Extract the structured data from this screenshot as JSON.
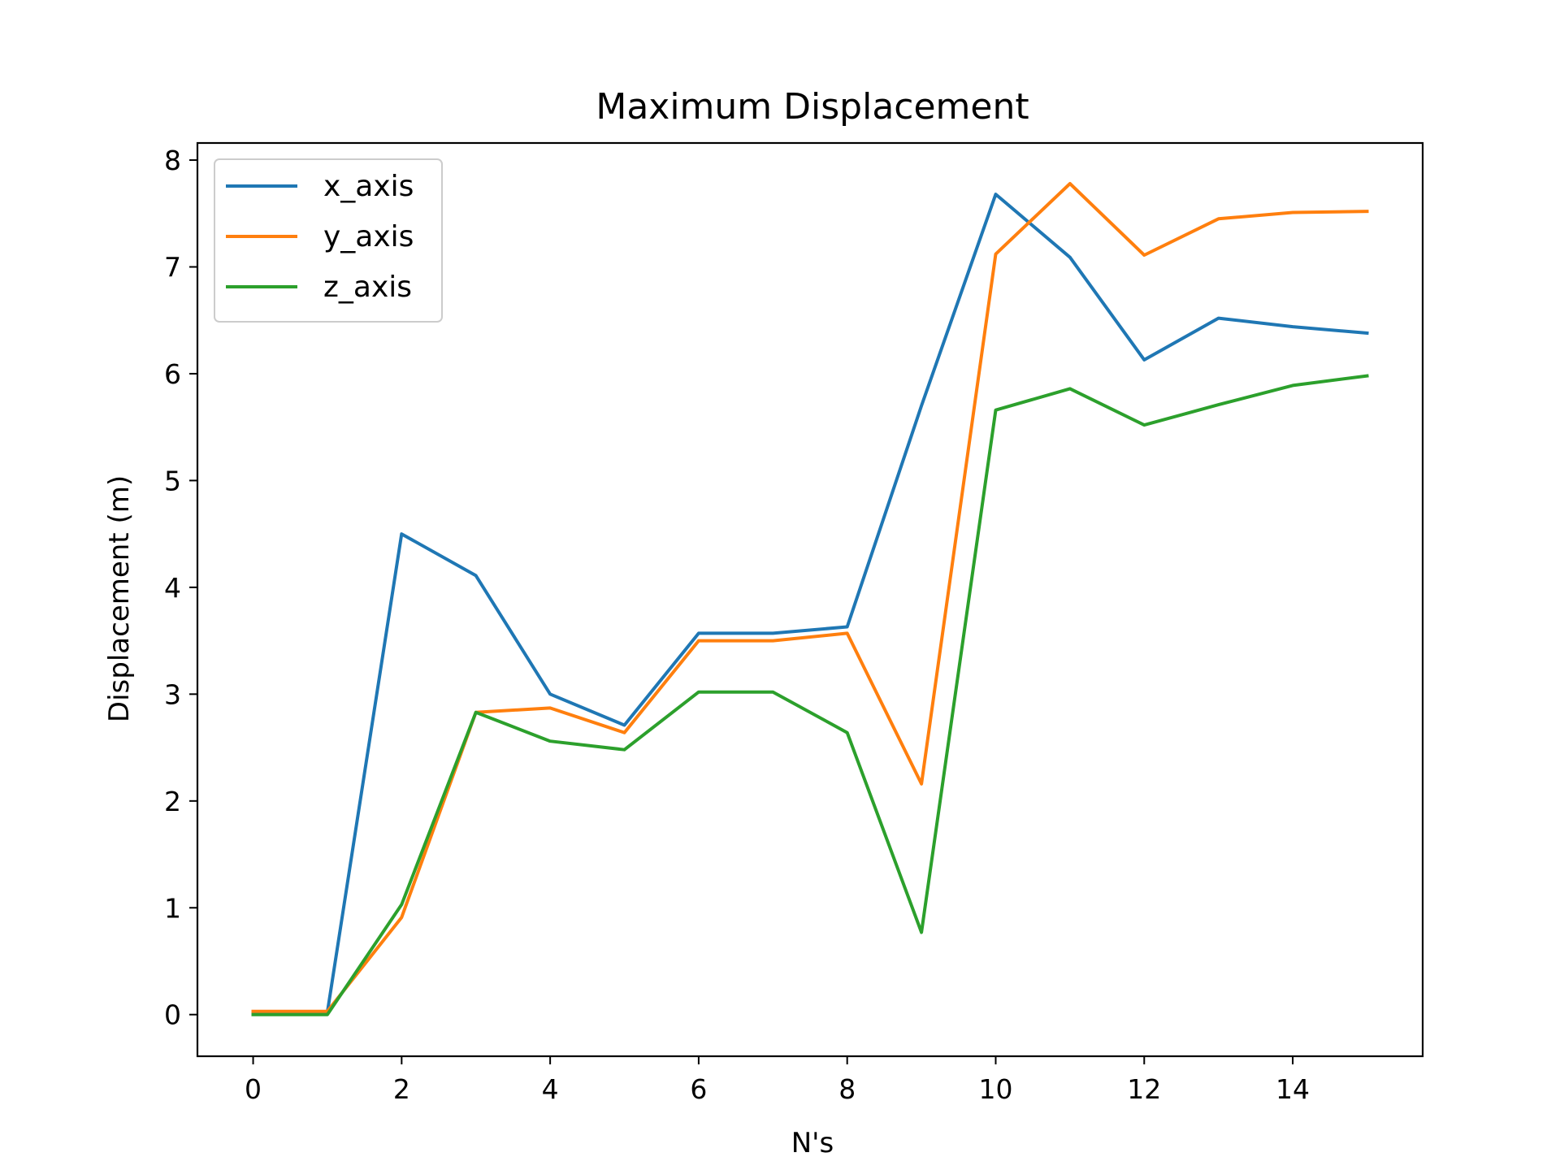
{
  "chart_data": {
    "type": "line",
    "title": "Maximum Displacement",
    "xlabel": "N's",
    "ylabel": "Displacement (m)",
    "xlim": [
      -0.75,
      15.75
    ],
    "ylim": [
      -0.39,
      8.16
    ],
    "xticks": [
      0,
      2,
      4,
      6,
      8,
      10,
      12,
      14
    ],
    "yticks": [
      0,
      1,
      2,
      3,
      4,
      5,
      6,
      7,
      8
    ],
    "grid": false,
    "legend_position": "top-left",
    "x": [
      0,
      1,
      2,
      3,
      4,
      5,
      6,
      7,
      8,
      9,
      10,
      11,
      12,
      13,
      14,
      15
    ],
    "series": [
      {
        "name": "x_axis",
        "color": "#1f77b4",
        "values": [
          0.02,
          0.02,
          4.5,
          4.11,
          3.0,
          2.71,
          3.57,
          3.57,
          3.63,
          5.7,
          7.68,
          7.09,
          6.13,
          6.52,
          6.44,
          6.38
        ]
      },
      {
        "name": "y_axis",
        "color": "#ff7f0e",
        "values": [
          0.03,
          0.03,
          0.91,
          2.83,
          2.87,
          2.64,
          3.5,
          3.5,
          3.57,
          2.16,
          7.12,
          7.78,
          7.11,
          7.45,
          7.51,
          7.52
        ]
      },
      {
        "name": "z_axis",
        "color": "#2ca02c",
        "values": [
          0.0,
          0.0,
          1.03,
          2.83,
          2.56,
          2.48,
          3.02,
          3.02,
          2.64,
          0.77,
          5.66,
          5.86,
          5.52,
          5.71,
          5.89,
          5.98
        ]
      }
    ]
  }
}
